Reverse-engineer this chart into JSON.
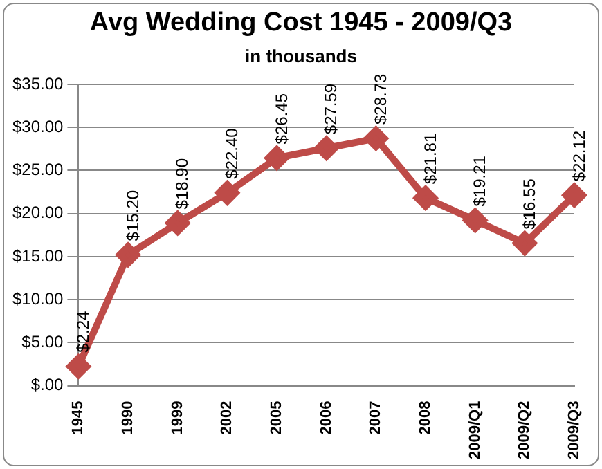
{
  "chart_data": {
    "type": "line",
    "title": "Avg Wedding Cost 1945 - 2009/Q3",
    "subtitle": "in thousands",
    "categories": [
      "1945",
      "1990",
      "1999",
      "2002",
      "2005",
      "2006",
      "2007",
      "2008",
      "2009/Q1",
      "2009/Q2",
      "2009/Q3"
    ],
    "series": [
      {
        "color": "#be4b48",
        "values": [
          2.24,
          15.2,
          18.9,
          22.4,
          26.45,
          27.59,
          28.73,
          21.81,
          19.21,
          16.55,
          22.12
        ],
        "value_labels": [
          "$2.24",
          "$15.20",
          "$18.90",
          "$22.40",
          "$26.45",
          "$27.59",
          "$28.73",
          "$21.81",
          "$19.21",
          "$16.55",
          "$22.12"
        ]
      }
    ],
    "ylim": [
      0,
      35
    ],
    "yticks": [
      {
        "value": 0,
        "label": "$.00"
      },
      {
        "value": 5,
        "label": "$5.00"
      },
      {
        "value": 10,
        "label": "$10.00"
      },
      {
        "value": 15,
        "label": "$15.00"
      },
      {
        "value": 20,
        "label": "$20.00"
      },
      {
        "value": 25,
        "label": "$25.00"
      },
      {
        "value": 30,
        "label": "$30.00"
      },
      {
        "value": 35,
        "label": "$35.00"
      }
    ],
    "grid": "y",
    "legend": false,
    "marker": "diamond",
    "line_style": "solid"
  }
}
